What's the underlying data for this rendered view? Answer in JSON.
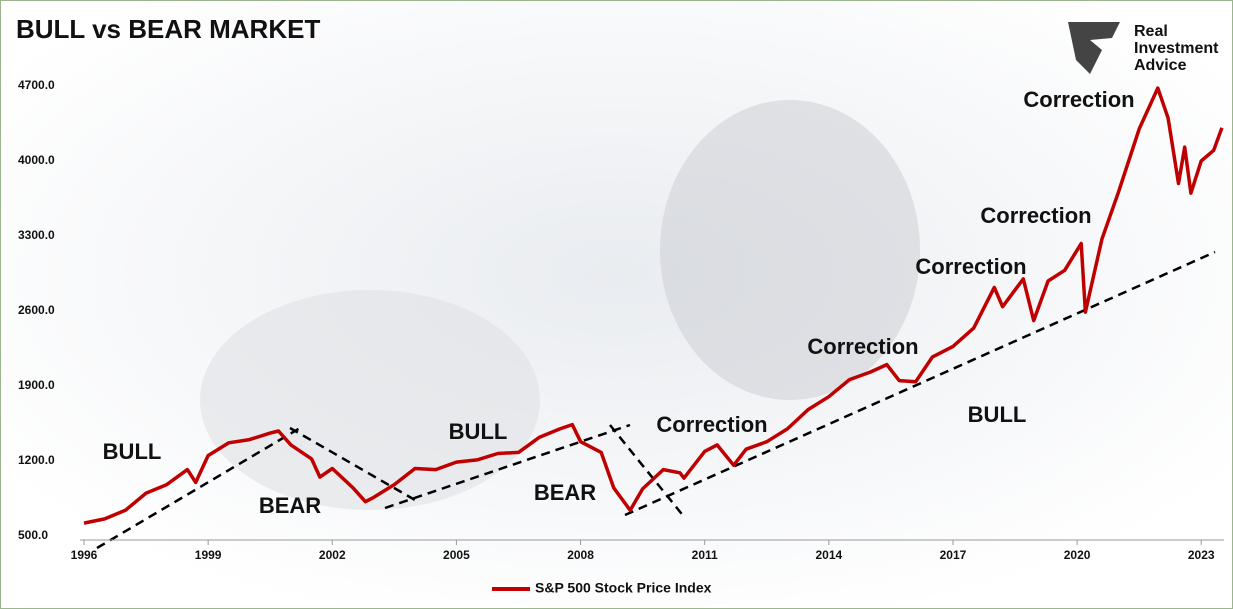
{
  "chart_data": {
    "type": "line",
    "title": "BULL vs BEAR MARKET",
    "logo": [
      "Real",
      "Investment",
      "Advice"
    ],
    "annotations": [
      "BULL",
      "BEAR",
      "BULL",
      "BEAR",
      "Correction",
      "Correction",
      "Correction",
      "Correction",
      "Correction",
      "BULL"
    ],
    "x": [
      1996.0,
      1996.5,
      1997.0,
      1997.5,
      1998.0,
      1998.5,
      1998.7,
      1999.0,
      1999.5,
      2000.0,
      2000.5,
      2000.7,
      2001.0,
      2001.5,
      2001.7,
      2002.0,
      2002.5,
      2002.8,
      2003.0,
      2003.5,
      2004.0,
      2004.5,
      2005.0,
      2005.5,
      2006.0,
      2006.5,
      2007.0,
      2007.5,
      2007.8,
      2008.0,
      2008.5,
      2008.8,
      2009.2,
      2009.5,
      2010.0,
      2010.4,
      2010.5,
      2011.0,
      2011.3,
      2011.7,
      2012.0,
      2012.5,
      2013.0,
      2013.5,
      2014.0,
      2014.5,
      2015.0,
      2015.4,
      2015.7,
      2016.1,
      2016.5,
      2017.0,
      2017.5,
      2018.0,
      2018.2,
      2018.7,
      2018.95,
      2019.3,
      2019.7,
      2020.1,
      2020.2,
      2020.6,
      2021.0,
      2021.5,
      2021.95,
      2022.2,
      2022.45,
      2022.6,
      2022.75,
      2023.0,
      2023.3,
      2023.5
    ],
    "series": [
      {
        "name": "S&P 500 Stock Price Index",
        "color": "#c00000",
        "values": [
          620,
          660,
          740,
          900,
          980,
          1120,
          1000,
          1250,
          1370,
          1400,
          1460,
          1480,
          1350,
          1220,
          1050,
          1130,
          950,
          820,
          860,
          980,
          1130,
          1120,
          1190,
          1210,
          1270,
          1280,
          1420,
          1500,
          1540,
          1380,
          1280,
          950,
          740,
          940,
          1120,
          1090,
          1040,
          1290,
          1350,
          1160,
          1310,
          1380,
          1500,
          1680,
          1800,
          1960,
          2030,
          2100,
          1950,
          1940,
          2170,
          2270,
          2440,
          2820,
          2640,
          2900,
          2510,
          2880,
          2980,
          3230,
          2590,
          3270,
          3710,
          4300,
          4680,
          4400,
          3790,
          4130,
          3700,
          4000,
          4100,
          4310
        ]
      }
    ],
    "xlim": [
      1996,
      2023.55
    ],
    "xticks": [
      1996,
      1999,
      2002,
      2005,
      2008,
      2011,
      2014,
      2017,
      2020,
      2023
    ],
    "ylim": [
      500,
      4700
    ],
    "yticks": [
      {
        "value": 500,
        "label": "500.0"
      },
      {
        "value": 1200,
        "label": "1200.0"
      },
      {
        "value": 1900,
        "label": "1900.0"
      },
      {
        "value": 2600,
        "label": "2600.0"
      },
      {
        "value": 3300,
        "label": "3300.0"
      },
      {
        "value": 4000,
        "label": "4000.0"
      },
      {
        "value": 4700,
        "label": "4700.0"
      }
    ],
    "grid": false,
    "legend": "bottom"
  }
}
